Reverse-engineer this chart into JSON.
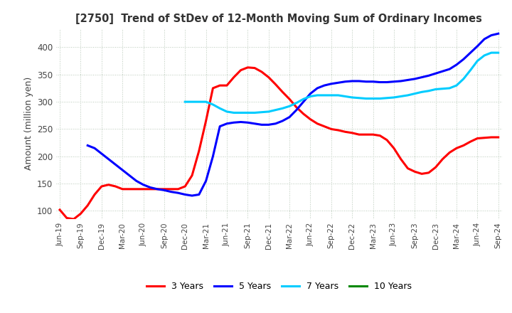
{
  "title": "[2750]  Trend of StDev of 12-Month Moving Sum of Ordinary Incomes",
  "ylabel": "Amount (million yen)",
  "ylim": [
    85,
    435
  ],
  "yticks": [
    100,
    150,
    200,
    250,
    300,
    350,
    400
  ],
  "background_color": "#ffffff",
  "grid_color": "#b8c8b8",
  "series_order": [
    "3 Years",
    "5 Years",
    "7 Years",
    "10 Years"
  ],
  "series": {
    "3 Years": {
      "color": "#ff0000",
      "x": [
        0,
        1,
        2,
        3,
        4,
        5,
        6,
        7,
        8,
        9,
        10,
        11,
        12,
        13,
        14,
        15,
        16,
        17,
        18,
        19,
        20,
        21,
        22,
        23,
        24,
        25,
        26,
        27,
        28,
        29,
        30,
        31,
        32,
        33,
        34,
        35,
        36,
        37,
        38,
        39,
        40,
        41,
        42,
        43,
        44,
        45,
        46,
        47,
        48,
        49,
        50,
        51,
        52,
        53,
        54,
        55,
        56,
        57,
        58,
        59,
        60,
        61,
        62,
        63
      ],
      "y": [
        102,
        87,
        85,
        95,
        110,
        130,
        145,
        148,
        145,
        140,
        140,
        140,
        140,
        140,
        140,
        140,
        140,
        140,
        145,
        165,
        210,
        265,
        325,
        330,
        330,
        345,
        358,
        363,
        362,
        355,
        345,
        332,
        318,
        305,
        290,
        278,
        268,
        260,
        255,
        250,
        248,
        245,
        243,
        240,
        240,
        240,
        238,
        230,
        215,
        195,
        178,
        172,
        168,
        170,
        180,
        195,
        207,
        215,
        220,
        227,
        233,
        234,
        235,
        235
      ]
    },
    "5 Years": {
      "color": "#0000ff",
      "x": [
        4,
        5,
        6,
        7,
        8,
        9,
        10,
        11,
        12,
        13,
        14,
        15,
        16,
        17,
        18,
        19,
        20,
        21,
        22,
        23,
        24,
        25,
        26,
        27,
        28,
        29,
        30,
        31,
        32,
        33,
        34,
        35,
        36,
        37,
        38,
        39,
        40,
        41,
        42,
        43,
        44,
        45,
        46,
        47,
        48,
        49,
        50,
        51,
        52,
        53,
        54,
        55,
        56,
        57,
        58,
        59,
        60,
        61,
        62,
        63
      ],
      "y": [
        220,
        215,
        205,
        195,
        185,
        175,
        165,
        155,
        148,
        143,
        140,
        138,
        135,
        133,
        130,
        128,
        130,
        155,
        200,
        255,
        260,
        262,
        263,
        262,
        260,
        258,
        258,
        260,
        265,
        272,
        285,
        300,
        315,
        325,
        330,
        333,
        335,
        337,
        338,
        338,
        337,
        337,
        336,
        336,
        337,
        338,
        340,
        342,
        345,
        348,
        352,
        356,
        360,
        368,
        378,
        390,
        402,
        415,
        422,
        425
      ]
    },
    "7 Years": {
      "color": "#00ccff",
      "x": [
        18,
        19,
        20,
        21,
        22,
        23,
        24,
        25,
        26,
        27,
        28,
        29,
        30,
        31,
        32,
        33,
        34,
        35,
        36,
        37,
        38,
        39,
        40,
        41,
        42,
        43,
        44,
        45,
        46,
        47,
        48,
        49,
        50,
        51,
        52,
        53,
        54,
        55,
        56,
        57,
        58,
        59,
        60,
        61,
        62,
        63
      ],
      "y": [
        300,
        300,
        300,
        300,
        295,
        288,
        282,
        280,
        280,
        280,
        280,
        281,
        282,
        285,
        288,
        292,
        298,
        305,
        310,
        312,
        312,
        312,
        312,
        310,
        308,
        307,
        306,
        306,
        306,
        307,
        308,
        310,
        312,
        315,
        318,
        320,
        323,
        324,
        325,
        330,
        342,
        358,
        375,
        385,
        390,
        390
      ]
    },
    "10 Years": {
      "color": "#008800",
      "x": [],
      "y": []
    }
  },
  "xtick_positions": [
    0,
    3,
    6,
    9,
    12,
    15,
    18,
    21,
    24,
    27,
    30,
    33,
    36,
    39,
    42,
    45,
    48,
    51,
    54,
    57,
    60,
    63
  ],
  "xtick_labels": [
    "Jun-19",
    "Sep-19",
    "Dec-19",
    "Mar-20",
    "Jun-20",
    "Sep-20",
    "Dec-20",
    "Mar-21",
    "Jun-21",
    "Sep-21",
    "Dec-21",
    "Mar-22",
    "Jun-22",
    "Sep-22",
    "Dec-22",
    "Mar-23",
    "Jun-23",
    "Sep-23",
    "Dec-23",
    "Mar-24",
    "Jun-24",
    "Sep-24"
  ],
  "legend_labels": [
    "3 Years",
    "5 Years",
    "7 Years",
    "10 Years"
  ],
  "legend_colors": [
    "#ff0000",
    "#0000ff",
    "#00ccff",
    "#008800"
  ]
}
